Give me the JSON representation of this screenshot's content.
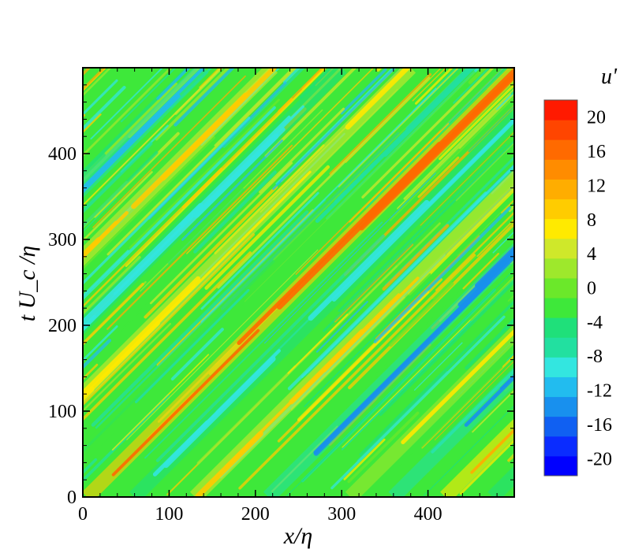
{
  "chart_data": {
    "type": "heatmap",
    "xlabel": "x/η",
    "ylabel": "t U_c /η",
    "xlim": [
      0,
      500
    ],
    "ylim": [
      0,
      500
    ],
    "xticks": [
      0,
      100,
      200,
      300,
      400
    ],
    "yticks": [
      0,
      100,
      200,
      300,
      400
    ],
    "colorbar": {
      "title": "u'",
      "range": [
        -22,
        22
      ],
      "tick_values": [
        20,
        16,
        12,
        8,
        4,
        0,
        -4,
        -8,
        -12,
        -16,
        -20
      ],
      "tick_labels": [
        "20",
        "16",
        "12",
        "8",
        "4",
        "0",
        "-4",
        "-8",
        "-12",
        "-16",
        "-20"
      ],
      "level_colors": [
        "#0000ff",
        "#0a2cff",
        "#1060f2",
        "#1890ee",
        "#22bcef",
        "#33e6e0",
        "#22e0a0",
        "#1fe07a",
        "#3ee83a",
        "#6be82a",
        "#9ee82c",
        "#cfe82a",
        "#ffea00",
        "#ffcc00",
        "#ffad00",
        "#ff8c00",
        "#ff6a00",
        "#ff4500",
        "#ff1a00"
      ]
    },
    "pattern": {
      "description_values": "diagonal streaks of u' aligned with convection speed",
      "dominant_stripes": [
        {
          "x_at_t0": 5,
          "value": 16
        },
        {
          "x_at_t0": 60,
          "value": -10
        },
        {
          "x_at_t0": 130,
          "value": 10
        },
        {
          "x_at_t0": 215,
          "value": -14
        },
        {
          "x_at_t0": 310,
          "value": 6
        },
        {
          "x_at_t0": 360,
          "value": -14
        },
        {
          "x_at_t0": 420,
          "value": 12
        },
        {
          "x_at_t0": 475,
          "value": -10
        },
        {
          "x_at_t0": -50,
          "value": -6
        },
        {
          "x_at_t0": -120,
          "value": 8
        },
        {
          "x_at_t0": -200,
          "value": -10
        },
        {
          "x_at_t0": -280,
          "value": 10
        },
        {
          "x_at_t0": -360,
          "value": -12
        }
      ]
    }
  }
}
